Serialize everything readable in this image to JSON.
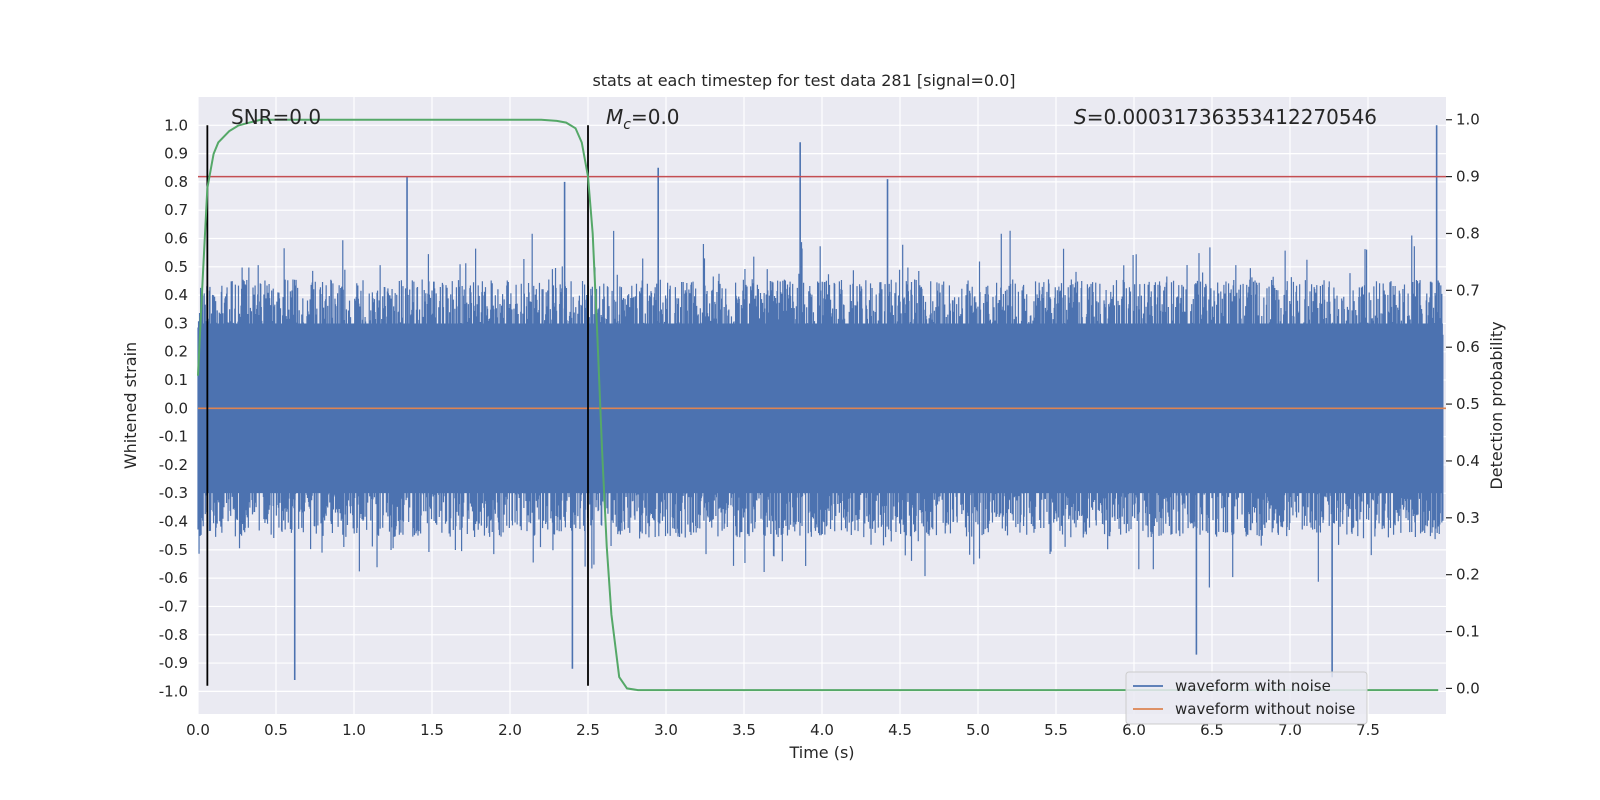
{
  "chart_data": {
    "type": "line",
    "title": "stats at each timestep for test data 281 [signal=0.0]",
    "xlabel": "Time (s)",
    "ylabel": "Whitened strain",
    "y2label": "Detection probability",
    "xlim": [
      0.0,
      8.0
    ],
    "ylim": [
      -1.08,
      1.1
    ],
    "y2lim": [
      -0.045,
      1.04
    ],
    "x_ticks": [
      0.0,
      0.5,
      1.0,
      1.5,
      2.0,
      2.5,
      3.0,
      3.5,
      4.0,
      4.5,
      5.0,
      5.5,
      6.0,
      6.5,
      7.0,
      7.5
    ],
    "x_tick_labels": [
      "0.0",
      "0.5",
      "1.0",
      "1.5",
      "2.0",
      "2.5",
      "3.0",
      "3.5",
      "4.0",
      "4.5",
      "5.0",
      "5.5",
      "6.0",
      "6.5",
      "7.0",
      "7.5"
    ],
    "y_ticks": [
      1.0,
      0.9,
      0.8,
      0.7,
      0.6,
      0.5,
      0.4,
      0.3,
      0.2,
      0.1,
      0.0,
      -0.1,
      -0.2,
      -0.3,
      -0.4,
      -0.5,
      -0.6,
      -0.7,
      -0.8,
      -0.9,
      -1.0
    ],
    "y_tick_labels": [
      "1.0",
      "0.9",
      "0.8",
      "0.7",
      "0.6",
      "0.5",
      "0.4",
      "0.3",
      "0.2",
      "0.1",
      "0.0",
      "-0.1",
      "-0.2",
      "-0.3",
      "-0.4",
      "-0.5",
      "-0.6",
      "-0.7",
      "-0.8",
      "-0.9",
      "-1.0"
    ],
    "y2_ticks": [
      1.0,
      0.9,
      0.8,
      0.7,
      0.6,
      0.5,
      0.4,
      0.3,
      0.2,
      0.1,
      0.0
    ],
    "y2_tick_labels": [
      "1.0",
      "0.9",
      "0.8",
      "0.7",
      "0.6",
      "0.5",
      "0.4",
      "0.3",
      "0.2",
      "0.1",
      "0.0"
    ],
    "grid": true,
    "annotations": {
      "snr": "SNR=0.0",
      "mc_symbol": "M",
      "mc_subscript": "c",
      "mc_value": "=0.0",
      "s_symbol": "S",
      "s_value": "=0.00031736353412270546"
    },
    "threshold": {
      "y2": 0.9,
      "color": "#c44e52"
    },
    "vertical_markers": [
      {
        "x": 0.06,
        "y_from": -0.98,
        "y_to": 1.0
      },
      {
        "x": 2.5,
        "y_from": -0.98,
        "y_to": 1.0
      }
    ],
    "series": [
      {
        "name": "waveform with noise",
        "color": "#4c72b0",
        "kind": "dense-noise",
        "y_range": [
          -0.96,
          1.0
        ],
        "typical_amplitude": 0.38,
        "notable_peaks": [
          {
            "x": 1.34,
            "y": 0.82
          },
          {
            "x": 2.35,
            "y": 0.8
          },
          {
            "x": 2.95,
            "y": 0.85
          },
          {
            "x": 3.86,
            "y": 0.94
          },
          {
            "x": 4.42,
            "y": 0.81
          },
          {
            "x": 7.94,
            "y": 1.0
          },
          {
            "x": 0.62,
            "y": -0.96
          },
          {
            "x": 2.4,
            "y": -0.92
          },
          {
            "x": 6.4,
            "y": -0.87
          },
          {
            "x": 7.27,
            "y": -0.95
          }
        ]
      },
      {
        "name": "waveform without noise",
        "color": "#dd8452",
        "x": [
          0.0,
          8.0
        ],
        "y": [
          0.0,
          0.0
        ]
      },
      {
        "name": "",
        "color": "#55a868",
        "axis": "right",
        "x": [
          0.0,
          0.03,
          0.06,
          0.1,
          0.13,
          0.2,
          0.26,
          0.33,
          0.4,
          0.5,
          0.6,
          0.8,
          1.0,
          1.5,
          2.0,
          2.2,
          2.3,
          2.36,
          2.42,
          2.46,
          2.5,
          2.53,
          2.56,
          2.59,
          2.62,
          2.65,
          2.7,
          2.75,
          2.82,
          3.0,
          4.0,
          5.0,
          6.0,
          7.0,
          7.95
        ],
        "y": [
          0.55,
          0.72,
          0.88,
          0.94,
          0.96,
          0.98,
          0.99,
          0.995,
          1.0,
          1.0,
          1.0,
          1.0,
          1.0,
          1.0,
          1.0,
          1.0,
          0.998,
          0.995,
          0.985,
          0.96,
          0.9,
          0.8,
          0.62,
          0.42,
          0.25,
          0.13,
          0.02,
          0.0,
          -0.003,
          -0.003,
          -0.003,
          -0.003,
          -0.003,
          -0.003,
          -0.003
        ]
      }
    ],
    "legend": {
      "position": "lower-right",
      "entries": [
        {
          "label": "waveform with noise",
          "color": "#4c72b0"
        },
        {
          "label": "waveform without noise",
          "color": "#dd8452"
        }
      ]
    }
  }
}
